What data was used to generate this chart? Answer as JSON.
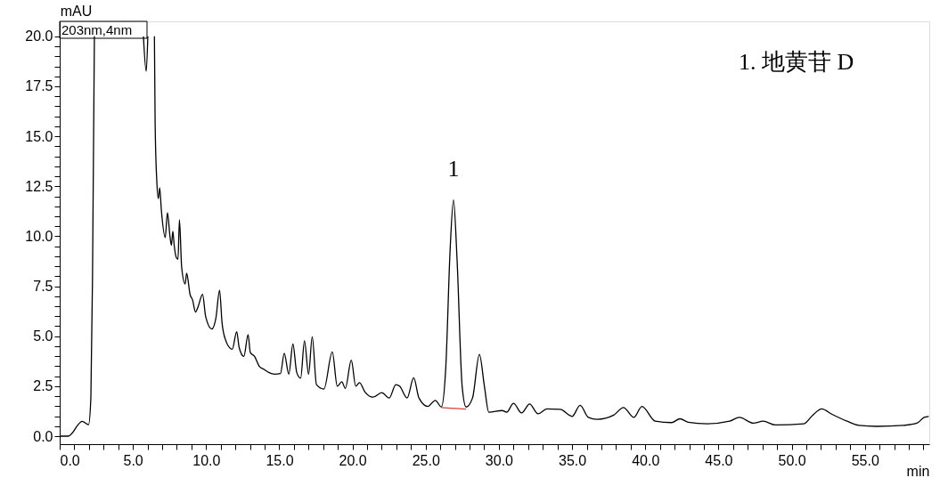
{
  "chart_data": {
    "type": "line",
    "xlabel": "min",
    "ylabel": "mAU",
    "xlim": [
      0,
      59.4
    ],
    "ylim": [
      -0.4,
      20.75
    ],
    "grid": false,
    "xticks": [
      {
        "value": 0,
        "label": "0.0"
      },
      {
        "value": 1,
        "label": null
      },
      {
        "value": 2,
        "label": null
      },
      {
        "value": 3,
        "label": null
      },
      {
        "value": 4,
        "label": null
      },
      {
        "value": 5,
        "label": "5.0"
      },
      {
        "value": 6,
        "label": null
      },
      {
        "value": 7,
        "label": null
      },
      {
        "value": 8,
        "label": null
      },
      {
        "value": 9,
        "label": null
      },
      {
        "value": 10,
        "label": "10.0"
      },
      {
        "value": 11,
        "label": null
      },
      {
        "value": 12,
        "label": null
      },
      {
        "value": 13,
        "label": null
      },
      {
        "value": 14,
        "label": null
      },
      {
        "value": 15,
        "label": "15.0"
      },
      {
        "value": 16,
        "label": null
      },
      {
        "value": 17,
        "label": null
      },
      {
        "value": 18,
        "label": null
      },
      {
        "value": 19,
        "label": null
      },
      {
        "value": 20,
        "label": "20.0"
      },
      {
        "value": 21,
        "label": null
      },
      {
        "value": 22,
        "label": null
      },
      {
        "value": 23,
        "label": null
      },
      {
        "value": 24,
        "label": null
      },
      {
        "value": 25,
        "label": "25.0"
      },
      {
        "value": 26,
        "label": null
      },
      {
        "value": 27,
        "label": null
      },
      {
        "value": 28,
        "label": null
      },
      {
        "value": 29,
        "label": null
      },
      {
        "value": 30,
        "label": "30.0"
      },
      {
        "value": 31,
        "label": null
      },
      {
        "value": 32,
        "label": null
      },
      {
        "value": 33,
        "label": null
      },
      {
        "value": 34,
        "label": null
      },
      {
        "value": 35,
        "label": "35.0"
      },
      {
        "value": 36,
        "label": null
      },
      {
        "value": 37,
        "label": null
      },
      {
        "value": 38,
        "label": null
      },
      {
        "value": 39,
        "label": null
      },
      {
        "value": 40,
        "label": "40.0"
      },
      {
        "value": 41,
        "label": null
      },
      {
        "value": 42,
        "label": null
      },
      {
        "value": 43,
        "label": null
      },
      {
        "value": 44,
        "label": null
      },
      {
        "value": 45,
        "label": "45.0"
      },
      {
        "value": 46,
        "label": null
      },
      {
        "value": 47,
        "label": null
      },
      {
        "value": 48,
        "label": null
      },
      {
        "value": 49,
        "label": null
      },
      {
        "value": 50,
        "label": "50.0"
      },
      {
        "value": 51,
        "label": null
      },
      {
        "value": 52,
        "label": null
      },
      {
        "value": 53,
        "label": null
      },
      {
        "value": 54,
        "label": null
      },
      {
        "value": 55,
        "label": "55.0"
      },
      {
        "value": 56,
        "label": null
      },
      {
        "value": 57,
        "label": null
      },
      {
        "value": 58,
        "label": null
      },
      {
        "value": 59,
        "label": null
      }
    ],
    "yticks": [
      {
        "value": 0,
        "label": "0.0"
      },
      {
        "value": 0.5,
        "label": null
      },
      {
        "value": 1,
        "label": null
      },
      {
        "value": 1.5,
        "label": null
      },
      {
        "value": 2,
        "label": null
      },
      {
        "value": 2.5,
        "label": "2.5"
      },
      {
        "value": 3,
        "label": null
      },
      {
        "value": 3.5,
        "label": null
      },
      {
        "value": 4,
        "label": null
      },
      {
        "value": 4.5,
        "label": null
      },
      {
        "value": 5,
        "label": "5.0"
      },
      {
        "value": 5.5,
        "label": null
      },
      {
        "value": 6,
        "label": null
      },
      {
        "value": 6.5,
        "label": null
      },
      {
        "value": 7,
        "label": null
      },
      {
        "value": 7.5,
        "label": "7.5"
      },
      {
        "value": 8,
        "label": null
      },
      {
        "value": 8.5,
        "label": null
      },
      {
        "value": 9,
        "label": null
      },
      {
        "value": 9.5,
        "label": null
      },
      {
        "value": 10,
        "label": "10.0"
      },
      {
        "value": 10.5,
        "label": null
      },
      {
        "value": 11,
        "label": null
      },
      {
        "value": 11.5,
        "label": null
      },
      {
        "value": 12,
        "label": null
      },
      {
        "value": 12.5,
        "label": "12.5"
      },
      {
        "value": 13,
        "label": null
      },
      {
        "value": 13.5,
        "label": null
      },
      {
        "value": 14,
        "label": null
      },
      {
        "value": 14.5,
        "label": null
      },
      {
        "value": 15,
        "label": "15.0"
      },
      {
        "value": 15.5,
        "label": null
      },
      {
        "value": 16,
        "label": null
      },
      {
        "value": 16.5,
        "label": null
      },
      {
        "value": 17,
        "label": null
      },
      {
        "value": 17.5,
        "label": "17.5"
      },
      {
        "value": 18,
        "label": null
      },
      {
        "value": 18.5,
        "label": null
      },
      {
        "value": 19,
        "label": null
      },
      {
        "value": 19.5,
        "label": null
      },
      {
        "value": 20,
        "label": "20.0"
      }
    ],
    "annotations": [
      "203nm,4nm",
      "1. 地黄苷 D",
      {
        "text": "1",
        "x": 26.9,
        "y": 11.82
      }
    ],
    "series": [
      {
        "color": "#000000",
        "x": [
          0,
          0.59,
          1.54,
          1.97,
          2.13,
          2.24,
          2.37,
          3.0,
          5.72,
          5.91,
          6.02,
          6.2,
          6.47,
          6.52,
          6.63,
          6.74,
          6.83,
          6.95,
          7.21,
          7.36,
          7.53,
          7.63,
          7.73,
          7.82,
          7.97,
          8.08,
          8.18,
          8.33,
          8.57,
          8.67,
          8.91,
          9.07,
          9.28,
          9.46,
          9.76,
          9.97,
          10.39,
          10.67,
          10.92,
          11.09,
          11.33,
          11.79,
          12.09,
          12.26,
          12.58,
          12.87,
          13.02,
          13.32,
          13.64,
          13.96,
          14.27,
          14.7,
          15.08,
          15.34,
          15.65,
          15.93,
          16.19,
          16.46,
          16.72,
          17.0,
          17.25,
          17.54,
          18.05,
          18.62,
          18.96,
          19.27,
          19.51,
          19.92,
          20.22,
          20.48,
          20.85,
          21.4,
          22.0,
          22.51,
          22.96,
          23.22,
          23.73,
          24.18,
          24.54,
          25.15,
          25.66,
          26.07,
          26.37,
          26.67,
          26.9,
          27.14,
          27.49,
          27.76,
          28.2,
          28.67,
          29.01,
          29.31,
          30.23,
          30.53,
          31.0,
          31.55,
          32.1,
          32.67,
          33.28,
          34.19,
          35.0,
          35.55,
          36.11,
          36.72,
          37.84,
          38.51,
          39.22,
          39.77,
          40.68,
          41.8,
          42.37,
          42.92,
          44.24,
          45.76,
          46.43,
          47.38,
          48.05,
          48.9,
          50.83,
          51.44,
          52.05,
          52.76,
          53.78,
          54.59,
          55.8,
          57.63,
          58.55,
          59.05,
          59.36
        ],
        "values": [
          0,
          0,
          0.74,
          0.57,
          1.94,
          7.84,
          20.0,
          null,
          20.0,
          18.25,
          20.0,
          null,
          20.0,
          15.6,
          12.8,
          11.88,
          12.43,
          11.26,
          9.94,
          11.18,
          10.02,
          9.55,
          10.25,
          9.55,
          8.93,
          8.85,
          10.82,
          8.46,
          7.61,
          8.15,
          7.07,
          6.83,
          6.21,
          6.49,
          7.1,
          5.98,
          5.36,
          5.91,
          7.3,
          5.67,
          4.81,
          4.35,
          5.23,
          4.43,
          3.99,
          5.08,
          4.19,
          3.98,
          3.49,
          3.34,
          3.19,
          3.1,
          3.13,
          4.15,
          3.1,
          4.61,
          3.19,
          2.9,
          4.77,
          3.1,
          4.97,
          2.58,
          2.36,
          4.21,
          2.5,
          2.72,
          2.39,
          3.8,
          2.5,
          2.68,
          2.21,
          1.95,
          2.18,
          1.91,
          2.58,
          2.5,
          1.91,
          2.92,
          1.91,
          1.49,
          1.79,
          1.46,
          3.4,
          9.34,
          11.82,
          8.89,
          2.5,
          1.46,
          1.91,
          4.09,
          2.5,
          1.2,
          1.28,
          1.2,
          1.64,
          1.16,
          1.61,
          1.12,
          1.36,
          1.34,
          0.99,
          1.54,
          0.94,
          0.84,
          1.05,
          1.43,
          0.94,
          1.49,
          0.75,
          0.68,
          0.87,
          0.7,
          0.62,
          0.75,
          0.94,
          0.65,
          0.75,
          0.56,
          0.62,
          1.05,
          1.36,
          1.09,
          0.75,
          0.54,
          0.49,
          0.54,
          0.65,
          0.94,
          0.99
        ]
      },
      {
        "color": "#e03c3c",
        "x": [
          26.07,
          27.76
        ],
        "values": [
          1.43,
          1.35
        ]
      }
    ]
  }
}
